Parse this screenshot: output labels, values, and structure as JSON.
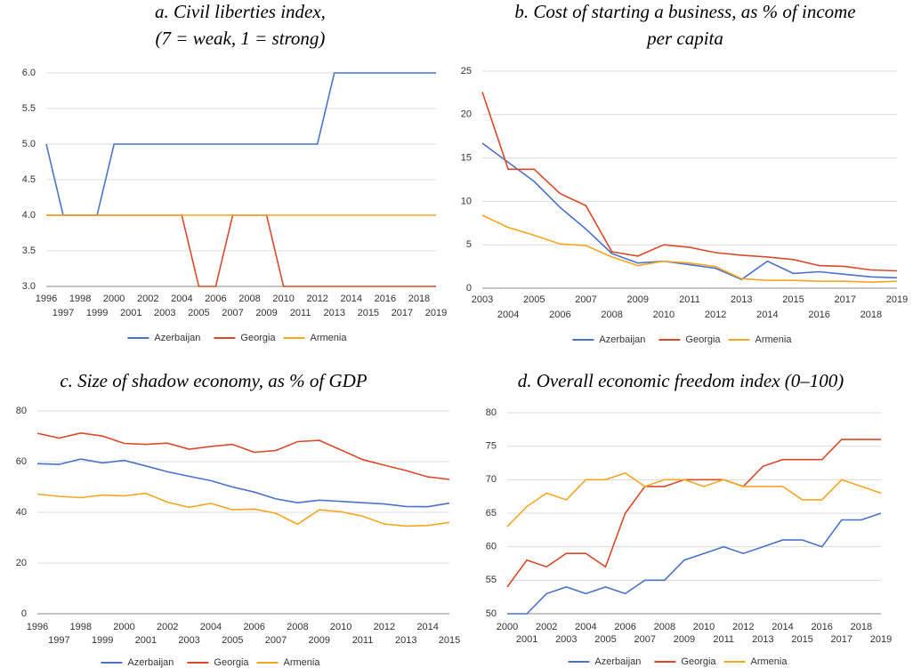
{
  "chart_data": [
    {
      "type": "line",
      "title": [
        "a. Civil liberties index,",
        "(7 = weak, 1 = strong)"
      ],
      "x": [
        1996,
        1997,
        1998,
        1999,
        2000,
        2001,
        2002,
        2003,
        2004,
        2005,
        2006,
        2007,
        2008,
        2009,
        2010,
        2011,
        2012,
        2013,
        2014,
        2015,
        2016,
        2017,
        2018,
        2019
      ],
      "xlim": [
        1996,
        2019
      ],
      "ylim": [
        3,
        6
      ],
      "yticks": [
        {
          "value": 3,
          "label": "3.0"
        },
        {
          "value": 3.5,
          "label": "3.5"
        },
        {
          "value": 4,
          "label": "4.0"
        },
        {
          "value": 4.5,
          "label": "4.5"
        },
        {
          "value": 5,
          "label": "5.0"
        },
        {
          "value": 5.5,
          "label": "5.5"
        },
        {
          "value": 6,
          "label": "6.0"
        }
      ],
      "grid": true,
      "legend": "bottom",
      "series": [
        {
          "name": "Azerbaijan",
          "color": "#4a72c9",
          "values": [
            5,
            4,
            4,
            4,
            5,
            5,
            5,
            5,
            5,
            5,
            5,
            5,
            5,
            5,
            5,
            5,
            5,
            6,
            6,
            6,
            6,
            6,
            6,
            6
          ]
        },
        {
          "name": "Georgia",
          "color": "#d94a2b",
          "values": [
            4,
            4,
            4,
            4,
            4,
            4,
            4,
            4,
            4,
            3,
            3,
            4,
            4,
            4,
            3,
            3,
            3,
            3,
            3,
            3,
            3,
            3,
            3,
            3
          ]
        },
        {
          "name": "Armenia",
          "color": "#f5a623",
          "values": [
            4,
            4,
            4,
            4,
            4,
            4,
            4,
            4,
            4,
            4,
            4,
            4,
            4,
            4,
            4,
            4,
            4,
            4,
            4,
            4,
            4,
            4,
            4,
            4
          ]
        }
      ]
    },
    {
      "type": "line",
      "title": [
        "b. Cost of starting a business, as % of income",
        "per capita"
      ],
      "x": [
        2003,
        2004,
        2005,
        2006,
        2007,
        2008,
        2009,
        2010,
        2011,
        2012,
        2013,
        2014,
        2015,
        2016,
        2017,
        2018,
        2019
      ],
      "xlim": [
        2003,
        2019
      ],
      "ylim": [
        0,
        25
      ],
      "yticks": [
        0,
        5,
        10,
        15,
        20,
        25
      ],
      "grid": true,
      "legend": "bottom",
      "series": [
        {
          "name": "Azerbaijan",
          "color": "#4a72c9",
          "values": [
            16.7,
            14.5,
            12.3,
            9.3,
            6.8,
            4.0,
            2.9,
            3.1,
            2.7,
            2.3,
            1.0,
            3.1,
            1.7,
            1.9,
            1.6,
            1.3,
            1.2
          ]
        },
        {
          "name": "Georgia",
          "color": "#d94a2b",
          "values": [
            22.6,
            13.7,
            13.7,
            10.9,
            9.5,
            4.2,
            3.7,
            5.0,
            4.7,
            4.1,
            3.8,
            3.6,
            3.3,
            2.6,
            2.5,
            2.1,
            2.0
          ]
        },
        {
          "name": "Armenia",
          "color": "#f5a623",
          "values": [
            8.4,
            7.0,
            6.1,
            5.1,
            4.9,
            3.6,
            2.6,
            3.1,
            2.9,
            2.5,
            1.1,
            0.9,
            0.9,
            0.8,
            0.8,
            0.7,
            0.8
          ]
        }
      ]
    },
    {
      "type": "line",
      "title": [
        "c. Size of shadow economy, as % of GDP"
      ],
      "x": [
        1996,
        1997,
        1998,
        1999,
        2000,
        2001,
        2002,
        2003,
        2004,
        2005,
        2006,
        2007,
        2008,
        2009,
        2010,
        2011,
        2012,
        2013,
        2014,
        2015
      ],
      "xlim": [
        1996,
        2015
      ],
      "ylim": [
        0,
        80
      ],
      "yticks": [
        0,
        20,
        40,
        60,
        80
      ],
      "grid": true,
      "legend": "bottom",
      "series": [
        {
          "name": "Azerbaijan",
          "color": "#4a72c9",
          "values": [
            59.2,
            58.9,
            61.0,
            59.5,
            60.5,
            58.3,
            56.0,
            54.2,
            52.5,
            50.0,
            48.0,
            45.3,
            43.8,
            44.8,
            44.3,
            43.8,
            43.3,
            42.3,
            42.2,
            43.6
          ]
        },
        {
          "name": "Georgia",
          "color": "#d94a2b",
          "values": [
            71.2,
            69.3,
            71.3,
            70.1,
            67.2,
            66.8,
            67.3,
            64.9,
            66.0,
            66.8,
            63.7,
            64.4,
            67.9,
            68.4,
            64.6,
            60.8,
            58.6,
            56.5,
            54.0,
            53.0
          ]
        },
        {
          "name": "Armenia",
          "color": "#f5a623",
          "values": [
            47.2,
            46.3,
            45.8,
            46.8,
            46.5,
            47.5,
            44.0,
            42.0,
            43.5,
            41.0,
            41.3,
            39.6,
            35.3,
            41.0,
            40.2,
            38.5,
            35.4,
            34.6,
            34.8,
            36.0
          ]
        }
      ]
    },
    {
      "type": "line",
      "title": [
        "d. Overall economic freedom index (0–100)"
      ],
      "x": [
        2000,
        2001,
        2002,
        2003,
        2004,
        2005,
        2006,
        2007,
        2008,
        2009,
        2010,
        2011,
        2012,
        2013,
        2014,
        2015,
        2016,
        2017,
        2018,
        2019
      ],
      "xlim": [
        2000,
        2019
      ],
      "ylim": [
        50,
        80
      ],
      "yticks": [
        50,
        55,
        60,
        65,
        70,
        75,
        80
      ],
      "grid": true,
      "legend": "bottom",
      "series": [
        {
          "name": "Azerbaijan",
          "color": "#4a72c9",
          "values": [
            50,
            50,
            53,
            54,
            53,
            54,
            53,
            55,
            55,
            58,
            59,
            60,
            59,
            60,
            61,
            61,
            60,
            64,
            64,
            65
          ]
        },
        {
          "name": "Georgia",
          "color": "#d94a2b",
          "values": [
            54,
            58,
            57,
            59,
            59,
            57,
            65,
            69,
            69,
            70,
            70,
            70,
            69,
            72,
            73,
            73,
            73,
            76,
            76,
            76
          ]
        },
        {
          "name": "Armenia",
          "color": "#f5a623",
          "values": [
            63,
            66,
            68,
            67,
            70,
            70,
            71,
            69,
            70,
            70,
            69,
            70,
            69,
            69,
            69,
            67,
            67,
            70,
            69,
            68
          ]
        }
      ]
    }
  ]
}
